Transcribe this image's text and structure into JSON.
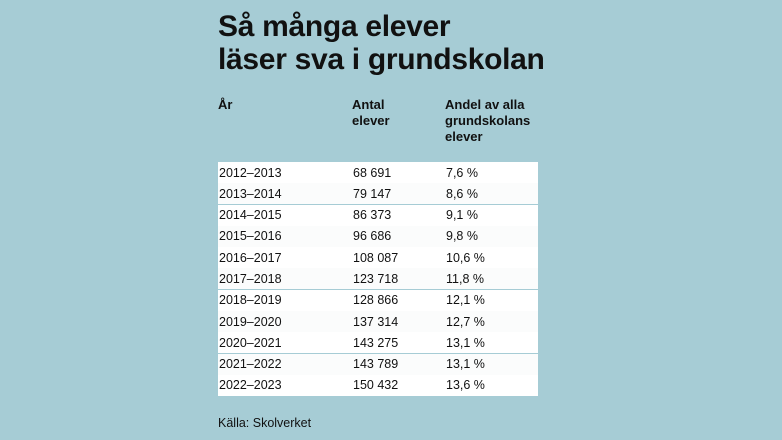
{
  "title_lines": [
    "Så många elever",
    "läser sva i grundskolan"
  ],
  "headers": {
    "year": [
      "År"
    ],
    "count": [
      "Antal",
      "elever"
    ],
    "share": [
      "Andel av alla",
      "grundskolans",
      "elever"
    ]
  },
  "rows": [
    {
      "year": "2012–2013",
      "count": "68 691",
      "share": "7,6 %"
    },
    {
      "year": "2013–2014",
      "count": "79 147",
      "share": "8,6 %"
    },
    {
      "year": "2014–2015",
      "count": "86 373",
      "share": "9,1 %"
    },
    {
      "year": "2015–2016",
      "count": "96 686",
      "share": "9,8 %"
    },
    {
      "year": "2016–2017",
      "count": "108 087",
      "share": "10,6 %"
    },
    {
      "year": "2017–2018",
      "count": "123 718",
      "share": "11,8 %"
    },
    {
      "year": "2018–2019",
      "count": "128 866",
      "share": "12,1 %"
    },
    {
      "year": "2019–2020",
      "count": "137 314",
      "share": "12,7 %"
    },
    {
      "year": "2020–2021",
      "count": "143 275",
      "share": "13,1 %"
    },
    {
      "year": "2021–2022",
      "count": "143 789",
      "share": "13,1 %"
    },
    {
      "year": "2022–2023",
      "count": "150 432",
      "share": "13,6 %"
    }
  ],
  "source": "Källa: Skolverket",
  "colors": {
    "background": "#a6ccd5",
    "row": "#ffffff",
    "text": "#111111"
  },
  "chart_data": {
    "type": "table",
    "title": "Så många elever läser sva i grundskolan",
    "columns": [
      "År",
      "Antal elever",
      "Andel av alla grundskolans elever"
    ],
    "x": [
      "2012–2013",
      "2013–2014",
      "2014–2015",
      "2015–2016",
      "2016–2017",
      "2017–2018",
      "2018–2019",
      "2019–2020",
      "2020–2021",
      "2021–2022",
      "2022–2023"
    ],
    "series": [
      {
        "name": "Antal elever",
        "values": [
          68691,
          79147,
          86373,
          96686,
          108087,
          123718,
          128866,
          137314,
          143275,
          143789,
          150432
        ]
      },
      {
        "name": "Andel av alla grundskolans elever",
        "values": [
          7.6,
          8.6,
          9.1,
          9.8,
          10.6,
          11.8,
          12.1,
          12.7,
          13.1,
          13.1,
          13.6
        ]
      }
    ]
  }
}
